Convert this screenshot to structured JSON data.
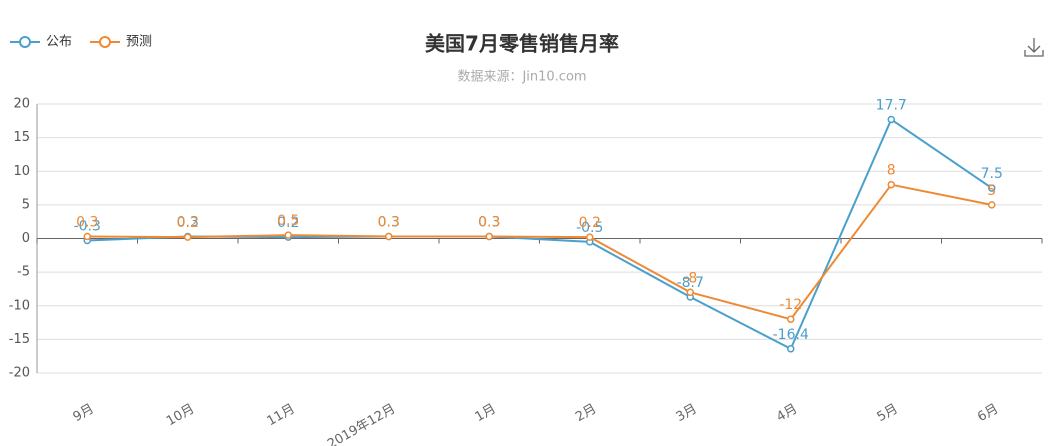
{
  "chart_data": {
    "type": "line",
    "title": "美国7月零售销售月率",
    "subtitle": "数据来源：Jin10.com",
    "categories": [
      "9月",
      "10月",
      "11月",
      "2019年12月",
      "1月",
      "2月",
      "3月",
      "4月",
      "5月",
      "6月"
    ],
    "series": [
      {
        "name": "公布",
        "color": "#4a9fcb",
        "values": [
          -0.3,
          0.3,
          0.2,
          0.3,
          0.3,
          -0.5,
          -8.7,
          -16.4,
          17.7,
          7.5
        ]
      },
      {
        "name": "预测",
        "color": "#ee8a35",
        "values": [
          0.3,
          0.2,
          0.5,
          0.3,
          0.3,
          0.2,
          -8,
          -12,
          8,
          5
        ]
      }
    ],
    "ylim": [
      -20,
      20
    ],
    "yticks": [
      -20,
      -15,
      -10,
      -5,
      0,
      5,
      10,
      15,
      20
    ],
    "grid": true
  }
}
